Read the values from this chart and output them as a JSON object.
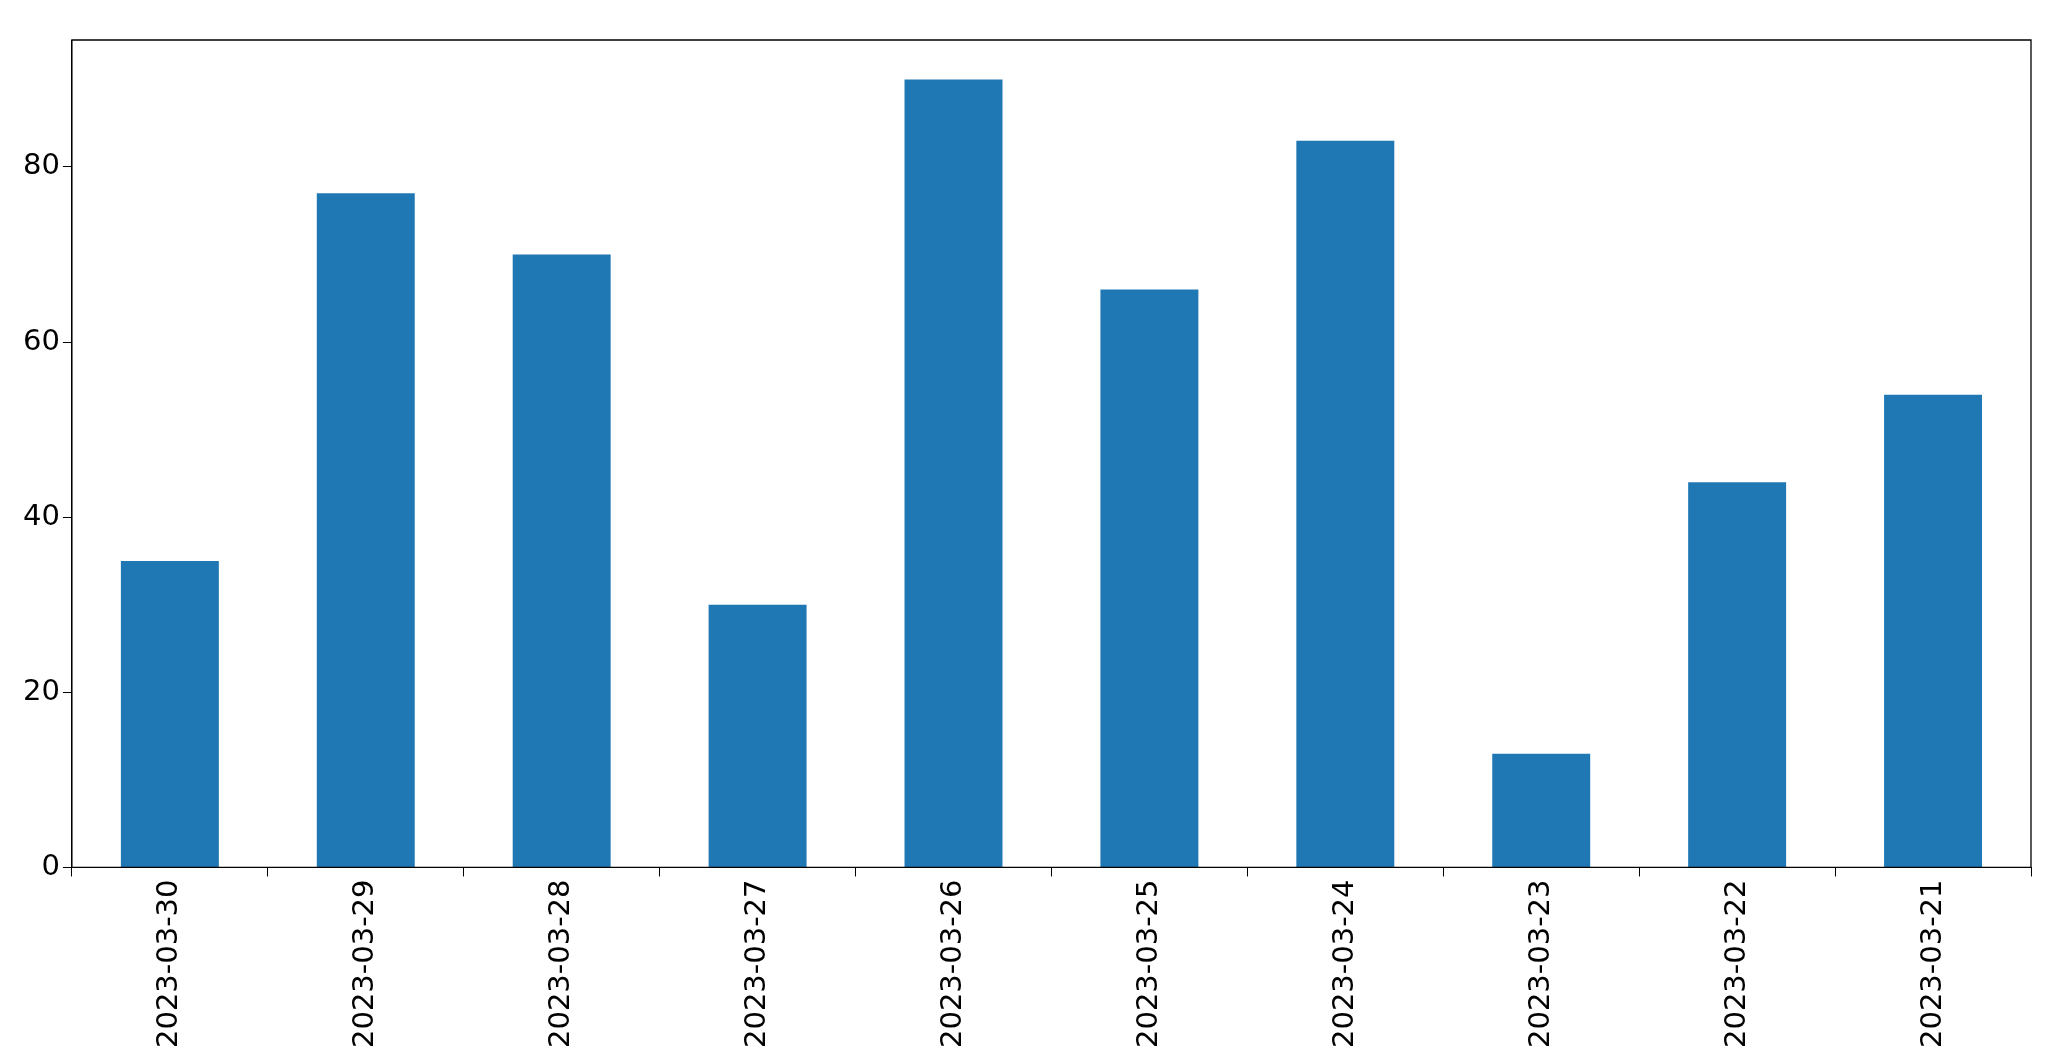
{
  "chart_data": {
    "type": "bar",
    "categories": [
      "2023-03-30",
      "2023-03-29",
      "2023-03-28",
      "2023-03-27",
      "2023-03-26",
      "2023-03-25",
      "2023-03-24",
      "2023-03-23",
      "2023-03-22",
      "2023-03-21"
    ],
    "values": [
      35,
      77,
      70,
      30,
      90,
      66,
      83,
      13,
      44,
      54
    ],
    "color": "#1f77b4",
    "ylim": [
      0,
      94.5
    ],
    "yticks": [
      0,
      20,
      40,
      60,
      80
    ],
    "grid": false,
    "legend": false
  }
}
